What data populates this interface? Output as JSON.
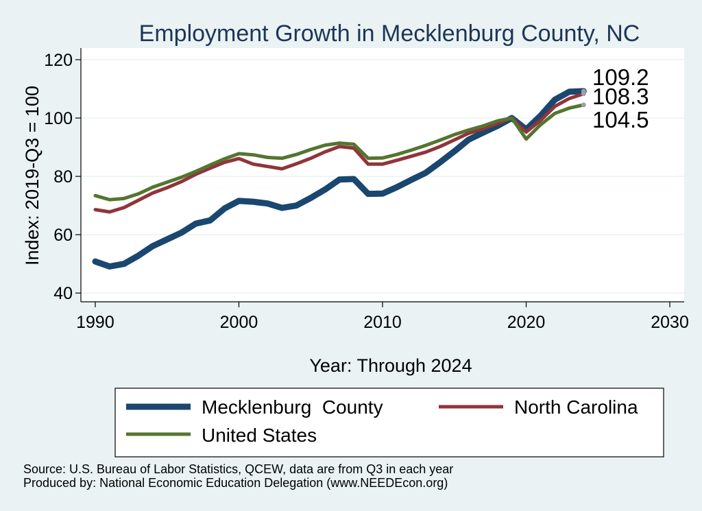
{
  "chart_data": {
    "type": "line",
    "title": "Employment Growth in Mecklenburg County, NC",
    "xlabel": "Year: Through 2024",
    "ylabel": "Index: 2019-Q3 = 100",
    "xlim": [
      1989,
      2031
    ],
    "ylim": [
      37,
      124
    ],
    "xticks": [
      1990,
      2000,
      2010,
      2020,
      2030
    ],
    "yticks": [
      40,
      60,
      80,
      100,
      120
    ],
    "x": [
      1990,
      1991,
      1992,
      1993,
      1994,
      1995,
      1996,
      1997,
      1998,
      1999,
      2000,
      2001,
      2002,
      2003,
      2004,
      2005,
      2006,
      2007,
      2008,
      2009,
      2010,
      2011,
      2012,
      2013,
      2014,
      2015,
      2016,
      2017,
      2018,
      2019,
      2020,
      2021,
      2022,
      2023,
      2024
    ],
    "series": [
      {
        "name": "Mecklenburg  County",
        "color": "#1a476f",
        "values": [
          50.8,
          49.1,
          50.0,
          52.8,
          56.1,
          58.4,
          60.7,
          63.8,
          64.9,
          69.0,
          71.6,
          71.3,
          70.7,
          69.2,
          70.0,
          72.6,
          75.5,
          78.9,
          79.1,
          74.0,
          74.1,
          76.3,
          78.8,
          81.2,
          84.8,
          88.6,
          92.6,
          95.0,
          97.3,
          100.0,
          96.1,
          100.8,
          106.3,
          109.0,
          109.2
        ],
        "end_label": "109.2"
      },
      {
        "name": "North Carolina",
        "color": "#90353b",
        "values": [
          68.6,
          67.8,
          69.3,
          71.8,
          74.3,
          76.1,
          78.2,
          80.7,
          82.8,
          84.8,
          86.1,
          84.2,
          83.4,
          82.6,
          84.3,
          86.2,
          88.4,
          90.2,
          89.7,
          84.2,
          84.2,
          85.5,
          86.9,
          88.3,
          90.2,
          92.5,
          94.8,
          96.3,
          98.1,
          100.0,
          95.2,
          99.2,
          104.0,
          106.7,
          108.3
        ],
        "end_label": "108.3"
      },
      {
        "name": "United States",
        "color": "#55752f",
        "values": [
          73.4,
          72.0,
          72.4,
          74.0,
          76.3,
          78.0,
          79.7,
          81.7,
          83.9,
          86.0,
          87.8,
          87.4,
          86.5,
          86.2,
          87.5,
          89.2,
          90.7,
          91.4,
          91.0,
          86.2,
          86.3,
          87.5,
          89.0,
          90.6,
          92.4,
          94.3,
          95.9,
          97.3,
          99.0,
          100.0,
          92.8,
          97.7,
          101.6,
          103.4,
          104.5
        ],
        "end_label": "104.5"
      }
    ],
    "legend_position": "bottom"
  },
  "source_lines": [
    "Source: U.S. Bureau of Labor Statistics, QCEW, data are from Q3 in each year",
    "Produced by: National Economic Education Delegation (www.NEEDEcon.org)"
  ]
}
